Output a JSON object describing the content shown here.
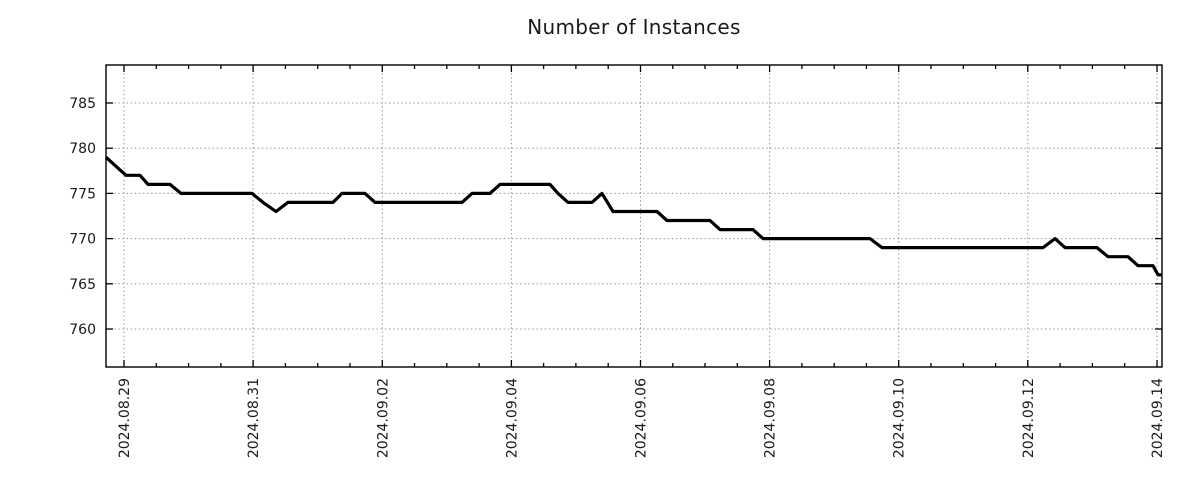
{
  "chart_data": {
    "type": "line",
    "title": "Number of Instances",
    "x_offset_unit": "days from 2024.08.29 (fractional = time of day)",
    "xlim": [
      -0.279,
      16.078
    ],
    "ylim": [
      755.8,
      789.2
    ],
    "y_ticks": [
      760,
      765,
      770,
      775,
      780,
      785
    ],
    "x_ticks": [
      {
        "offset": 0,
        "label": "2024.08.29"
      },
      {
        "offset": 2,
        "label": "2024.08.31"
      },
      {
        "offset": 4,
        "label": "2024.09.02"
      },
      {
        "offset": 6,
        "label": "2024.09.04"
      },
      {
        "offset": 8,
        "label": "2024.09.06"
      },
      {
        "offset": 10,
        "label": "2024.09.08"
      },
      {
        "offset": 12,
        "label": "2024.09.10"
      },
      {
        "offset": 14,
        "label": "2024.09.12"
      },
      {
        "offset": 16,
        "label": "2024.09.14"
      }
    ],
    "x_minor_tick_step": 0.5,
    "grid": true,
    "legend": false,
    "series": [
      {
        "name": "instances",
        "points": [
          [
            -0.279,
            779
          ],
          [
            -0.124,
            778
          ],
          [
            0.031,
            777
          ],
          [
            0.248,
            777
          ],
          [
            0.372,
            776
          ],
          [
            0.713,
            776
          ],
          [
            0.883,
            775
          ],
          [
            1.983,
            775
          ],
          [
            2.153,
            774
          ],
          [
            2.354,
            773
          ],
          [
            2.54,
            774
          ],
          [
            3.237,
            774
          ],
          [
            3.376,
            775
          ],
          [
            3.733,
            775
          ],
          [
            3.888,
            774
          ],
          [
            5.235,
            774
          ],
          [
            5.39,
            775
          ],
          [
            5.669,
            775
          ],
          [
            5.824,
            776
          ],
          [
            6.598,
            776
          ],
          [
            6.722,
            775
          ],
          [
            6.877,
            774
          ],
          [
            7.249,
            774
          ],
          [
            7.404,
            775
          ],
          [
            7.574,
            773
          ],
          [
            8.256,
            773
          ],
          [
            8.411,
            772
          ],
          [
            9.077,
            772
          ],
          [
            9.232,
            771
          ],
          [
            9.743,
            771
          ],
          [
            9.898,
            770
          ],
          [
            11.555,
            770
          ],
          [
            11.741,
            769
          ],
          [
            14.235,
            769
          ],
          [
            14.421,
            770
          ],
          [
            14.576,
            769
          ],
          [
            15.071,
            769
          ],
          [
            15.242,
            768
          ],
          [
            15.551,
            768
          ],
          [
            15.706,
            767
          ],
          [
            15.939,
            767
          ],
          [
            16.016,
            766
          ],
          [
            16.078,
            766
          ]
        ]
      }
    ],
    "style": {
      "line_color": "#000000",
      "line_width": 3.2,
      "grid_color": "#9a9a9a",
      "axis_color": "#000000",
      "text_color": "#1a1a1a",
      "background": "#ffffff"
    }
  }
}
